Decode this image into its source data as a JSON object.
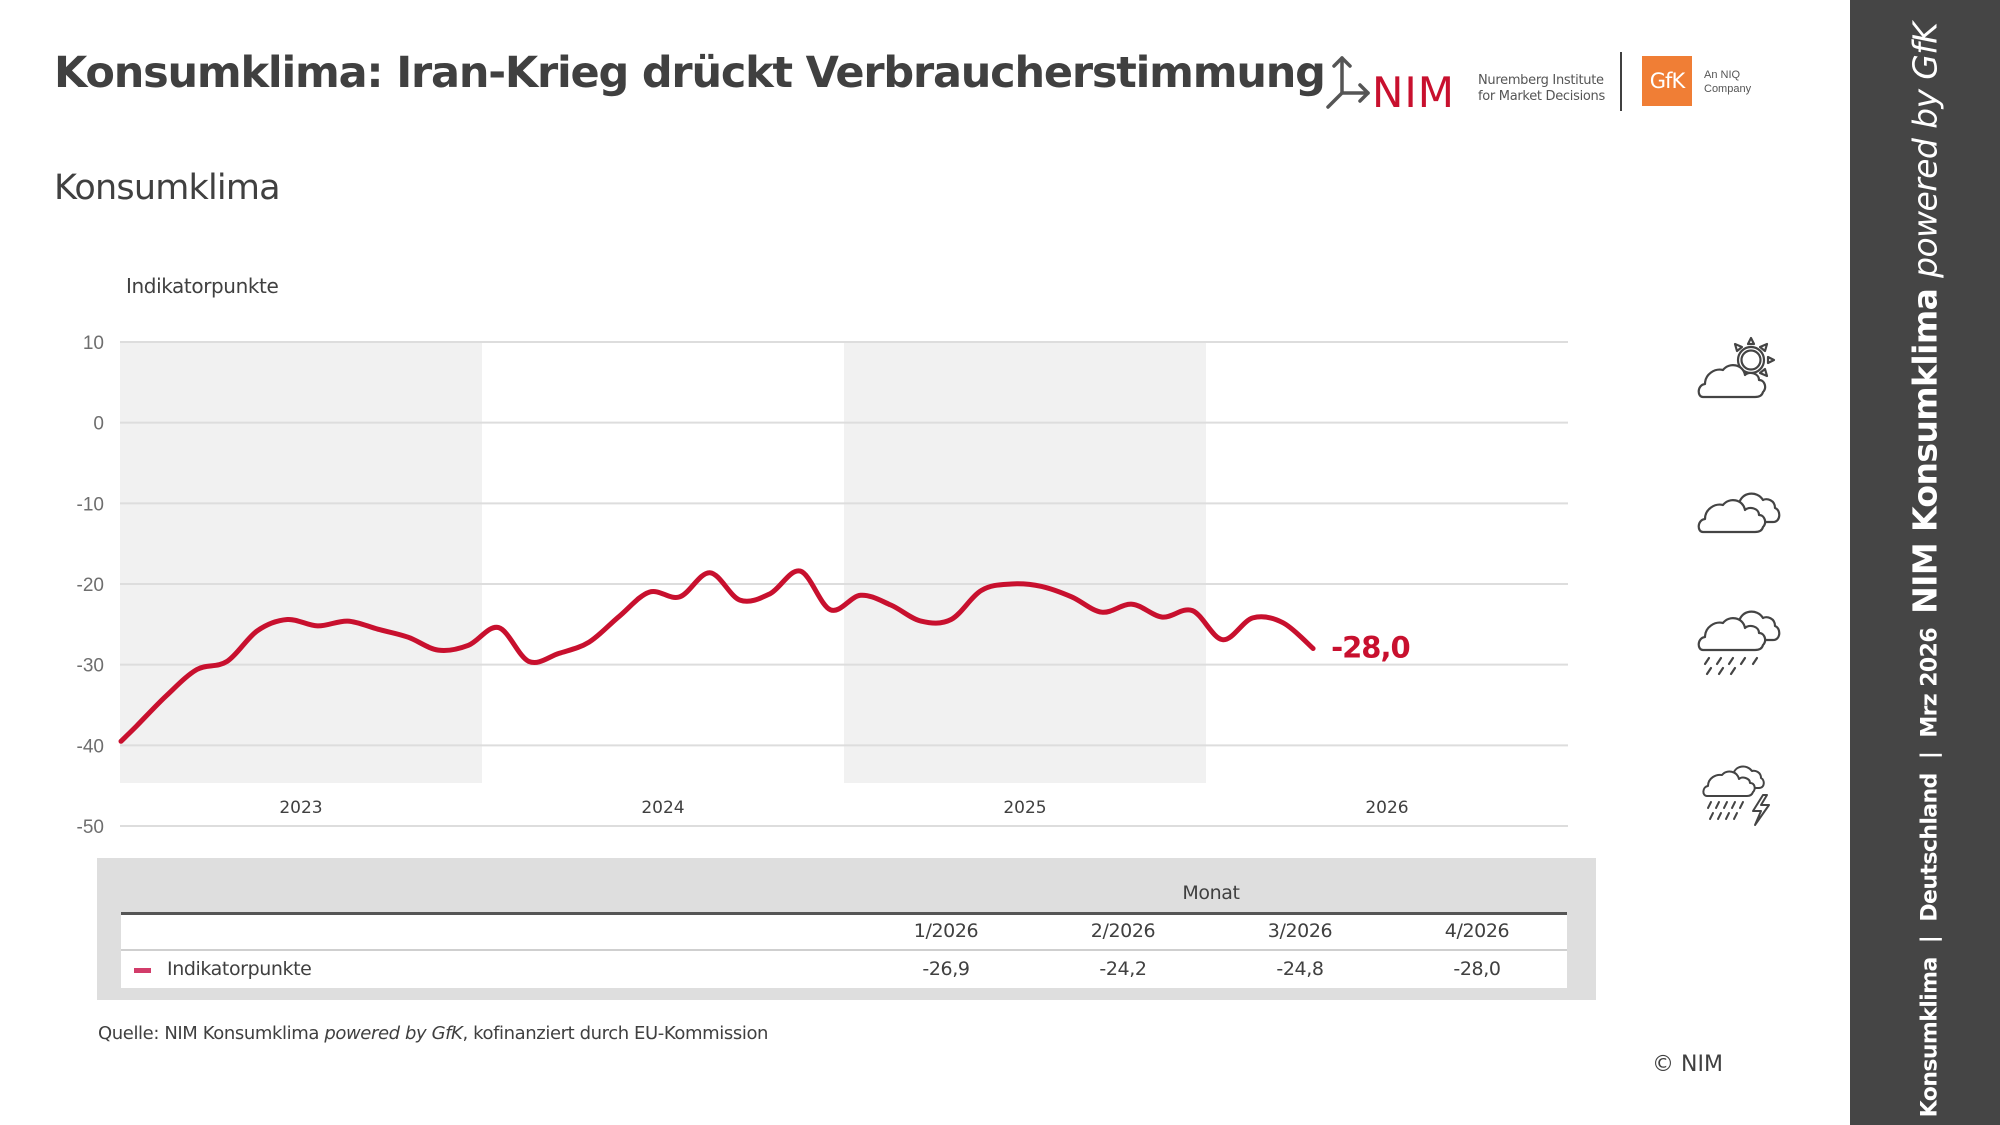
{
  "header": {
    "title": "Konsumklima: Iran-Krieg drückt Verbraucherstimmung",
    "subtitle": "Konsumklima"
  },
  "logos": {
    "nim_wordmark": "NIM",
    "nim_line1": "Nuremberg Institute",
    "nim_line2": "for Market Decisions",
    "gfk_wordmark": "GfK",
    "gfk_line1": "An NIQ",
    "gfk_line2": "Company",
    "nim_color": "#c8102e",
    "gfk_color": "#f07e35"
  },
  "colors": {
    "series": "#c8102e",
    "shade": "#f1f1f1",
    "grid": "#dddddd",
    "sidebar": "#454545"
  },
  "chart_data": {
    "type": "line",
    "title": "Konsumklima",
    "xlabel": "",
    "ylabel": "Indikatorpunkte",
    "ylim": [
      -50,
      10
    ],
    "yticks": [
      10,
      0,
      -10,
      -20,
      -30,
      -40,
      -50
    ],
    "grid": true,
    "shaded_years": [
      "2023",
      "2025"
    ],
    "year_labels": [
      "2023",
      "2024",
      "2025",
      "2026"
    ],
    "x": [
      "12/2022",
      "1/2023",
      "2/2023",
      "3/2023",
      "4/2023",
      "5/2023",
      "6/2023",
      "7/2023",
      "8/2023",
      "9/2023",
      "10/2023",
      "11/2023",
      "12/2023",
      "1/2024",
      "2/2024",
      "3/2024",
      "4/2024",
      "5/2024",
      "6/2024",
      "7/2024",
      "8/2024",
      "9/2024",
      "10/2024",
      "11/2024",
      "12/2024",
      "1/2025",
      "2/2025",
      "3/2025",
      "4/2025",
      "5/2025",
      "6/2025",
      "7/2025",
      "8/2025",
      "9/2025",
      "10/2025",
      "11/2025",
      "12/2025",
      "1/2026",
      "2/2026",
      "3/2026",
      "4/2026"
    ],
    "series": [
      {
        "name": "Indikatorpunkte",
        "values": [
          -39.5,
          -37.6,
          -33.8,
          -30.6,
          -29.6,
          -25.8,
          -24.4,
          -25.2,
          -24.6,
          -25.6,
          -26.6,
          -28.2,
          -27.6,
          -25.4,
          -29.6,
          -28.6,
          -27.2,
          -24.0,
          -21.0,
          -21.6,
          -18.6,
          -22.0,
          -21.2,
          -18.4,
          -23.2,
          -21.4,
          -22.6,
          -24.6,
          -24.4,
          -20.8,
          -20.0,
          -20.3,
          -21.6,
          -23.5,
          -22.5,
          -24.1,
          -23.3,
          -26.9,
          -24.2,
          -24.8,
          -28.0
        ]
      }
    ],
    "end_label": "-28,0",
    "legend": "bottom-table"
  },
  "table": {
    "group_header": "Monat",
    "columns": [
      "1/2026",
      "2/2026",
      "3/2026",
      "4/2026"
    ],
    "rows": [
      {
        "label": "Indikatorpunkte",
        "values": [
          "-26,9",
          "-24,2",
          "-24,8",
          "-28,0"
        ]
      }
    ]
  },
  "weather_icons": [
    "partly-sunny-icon",
    "cloudy-icon",
    "rain-icon",
    "thunderstorm-icon"
  ],
  "footer": {
    "source_prefix": "Quelle: NIM Konsumklima ",
    "source_italic": "powered by GfK",
    "source_suffix": ", kofinanziert durch EU-Kommission",
    "copyright": "© NIM"
  },
  "sidebar": {
    "part1": "Konsumklima  |  Deutschland  |  Mrz 2026  ",
    "part2": "NIM Konsumklima ",
    "part3": "powered by GfK"
  }
}
